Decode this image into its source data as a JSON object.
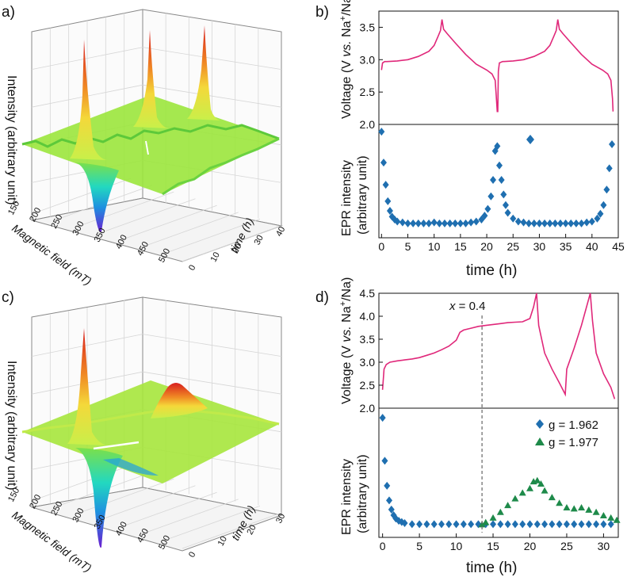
{
  "panels": {
    "a": "a)",
    "b": "b)",
    "c": "c)",
    "d": "d)"
  },
  "surface_axes": {
    "z_label": "Intensity (arbitrary unit)",
    "x_label": "Magnetic field (mT)",
    "y_label": "time (h)"
  },
  "labels": {
    "voltage_ylabel": "Voltage (V vs. Na+/Na)",
    "epr_ylabel_1": "EPR intensity",
    "epr_ylabel_2": "(arbitrary unit)",
    "time_xlabel": "time (h)",
    "annotation_d": "x = 0.4"
  },
  "colors": {
    "voltage": "#e0287a",
    "epr_1962": "#1f6fb0",
    "epr_1977": "#1e8a4a"
  },
  "chart_data": [
    {
      "id": "a",
      "type": "surface3d",
      "field_ticks": [
        "150",
        "200",
        "250",
        "300",
        "350",
        "400",
        "450",
        "500"
      ],
      "time_ticks": [
        "0",
        "10",
        "20",
        "30",
        "40"
      ],
      "time_range": [
        0,
        44
      ],
      "field_range": [
        150,
        500
      ]
    },
    {
      "id": "b-voltage",
      "type": "line",
      "ylim": [
        2.0,
        3.75
      ],
      "xlim": [
        -0.5,
        45
      ],
      "yticks": [
        "2.0",
        "2.5",
        "3.0",
        "3.5"
      ],
      "series": [
        {
          "x": [
            0,
            0.2,
            0.6,
            1,
            3,
            5,
            7,
            9,
            10,
            10.8,
            11.2,
            11.5,
            11.8,
            12.5,
            14,
            16,
            18,
            20,
            21,
            21.6,
            21.8,
            22.0,
            22.1,
            22.2,
            22.4,
            23,
            25,
            27,
            29,
            31,
            32,
            32.8,
            33.2,
            33.5,
            33.8,
            34.5,
            36,
            38,
            40,
            42,
            43,
            43.6,
            43.9,
            44
          ],
          "y": [
            2.84,
            2.95,
            2.97,
            2.97,
            2.98,
            3.0,
            3.05,
            3.13,
            3.22,
            3.37,
            3.45,
            3.62,
            3.47,
            3.4,
            3.26,
            3.08,
            2.93,
            2.84,
            2.78,
            2.68,
            2.45,
            2.2,
            2.2,
            2.82,
            2.95,
            2.97,
            2.98,
            3.0,
            3.05,
            3.13,
            3.22,
            3.37,
            3.45,
            3.62,
            3.47,
            3.4,
            3.26,
            3.08,
            2.93,
            2.84,
            2.78,
            2.68,
            2.4,
            2.2
          ]
        }
      ]
    },
    {
      "id": "b-epr",
      "type": "scatter",
      "xlim": [
        -0.5,
        45
      ],
      "xticks": [
        "0",
        "5",
        "10",
        "15",
        "20",
        "25",
        "30",
        "35",
        "40",
        "45"
      ],
      "legend": [
        "g = 1.962"
      ],
      "series": [
        {
          "name": "g = 1.962",
          "x": [
            0,
            0.4,
            0.8,
            1.2,
            1.6,
            2.0,
            2.5,
            3,
            4,
            5,
            6,
            7,
            8,
            9,
            10,
            11,
            12,
            13,
            14,
            15,
            16,
            17,
            18,
            19,
            19.6,
            20.2,
            20.8,
            21.2,
            21.6,
            22.0,
            22.4,
            22.8,
            23.2,
            23.6,
            24,
            25,
            26,
            27,
            28,
            29,
            30,
            31,
            32,
            33,
            34,
            35,
            36,
            37,
            38,
            39,
            40,
            41,
            41.6,
            42.2,
            42.8,
            43.3,
            43.8
          ],
          "y": [
            1.0,
            0.68,
            0.45,
            0.28,
            0.18,
            0.12,
            0.09,
            0.07,
            0.06,
            0.05,
            0.05,
            0.05,
            0.05,
            0.05,
            0.06,
            0.05,
            0.05,
            0.05,
            0.05,
            0.05,
            0.05,
            0.06,
            0.07,
            0.09,
            0.13,
            0.2,
            0.33,
            0.5,
            0.8,
            0.85,
            0.65,
            0.5,
            0.35,
            0.24,
            0.16,
            0.1,
            0.07,
            0.06,
            0.05,
            0.05,
            0.05,
            0.05,
            0.05,
            0.05,
            0.05,
            0.05,
            0.05,
            0.05,
            0.05,
            0.06,
            0.07,
            0.1,
            0.15,
            0.24,
            0.4,
            0.62,
            0.87
          ]
        }
      ]
    },
    {
      "id": "c",
      "type": "surface3d",
      "field_ticks": [
        "150",
        "200",
        "250",
        "300",
        "350",
        "400",
        "450",
        "500"
      ],
      "time_ticks": [
        "0",
        "10",
        "20",
        "30"
      ],
      "time_range": [
        0,
        32
      ],
      "field_range": [
        150,
        500
      ]
    },
    {
      "id": "d-voltage",
      "type": "line",
      "ylim": [
        2.0,
        4.5
      ],
      "xlim": [
        -0.5,
        32
      ],
      "yticks": [
        "2.0",
        "2.5",
        "3.0",
        "3.5",
        "4.0",
        "4.5"
      ],
      "series": [
        {
          "x": [
            0,
            0.2,
            0.5,
            1,
            2,
            3,
            4,
            5,
            6,
            7,
            8,
            9,
            10,
            10.5,
            11,
            12,
            13,
            14,
            15,
            16,
            17,
            18,
            19,
            20,
            20.5,
            20.9,
            21.2,
            22,
            23,
            24,
            24.8,
            25,
            26,
            27,
            28.2,
            28.5,
            29,
            30,
            31,
            31.5
          ],
          "y": [
            2.4,
            2.85,
            2.95,
            3.0,
            3.03,
            3.05,
            3.07,
            3.1,
            3.15,
            3.2,
            3.27,
            3.35,
            3.48,
            3.65,
            3.7,
            3.74,
            3.78,
            3.8,
            3.82,
            3.84,
            3.86,
            3.87,
            3.88,
            3.95,
            4.2,
            4.5,
            3.8,
            3.2,
            2.85,
            2.55,
            2.3,
            2.85,
            3.3,
            3.8,
            4.5,
            3.9,
            3.2,
            2.75,
            2.45,
            2.2
          ]
        }
      ]
    },
    {
      "id": "d-epr",
      "type": "scatter",
      "xlim": [
        -0.5,
        32
      ],
      "xticks": [
        "0",
        "5",
        "10",
        "15",
        "20",
        "25",
        "30"
      ],
      "annotation_x": 13.5,
      "legend": [
        "g = 1.962",
        "g = 1.977"
      ],
      "series": [
        {
          "name": "g = 1.962",
          "x": [
            0,
            0.3,
            0.6,
            0.9,
            1.2,
            1.5,
            1.8,
            2.2,
            2.6,
            3,
            4,
            5,
            6,
            7,
            8,
            9,
            10,
            11,
            12,
            13,
            14,
            15,
            16,
            17,
            18,
            19,
            20,
            21,
            22,
            23,
            24,
            25,
            26,
            27,
            28,
            29,
            30,
            31
          ],
          "y": [
            1.0,
            0.62,
            0.4,
            0.27,
            0.19,
            0.14,
            0.11,
            0.09,
            0.08,
            0.07,
            0.06,
            0.06,
            0.06,
            0.06,
            0.06,
            0.06,
            0.06,
            0.06,
            0.06,
            0.06,
            0.06,
            0.06,
            0.06,
            0.06,
            0.06,
            0.06,
            0.06,
            0.06,
            0.06,
            0.06,
            0.06,
            0.06,
            0.06,
            0.06,
            0.06,
            0.06,
            0.06,
            0.06
          ]
        },
        {
          "name": "g = 1.977",
          "x": [
            13.5,
            14,
            15,
            16,
            17,
            18,
            19,
            20,
            20.5,
            21,
            21.5,
            22,
            23,
            24,
            25,
            26,
            27,
            28,
            29,
            30,
            31,
            31.8
          ],
          "y": [
            0.06,
            0.08,
            0.12,
            0.17,
            0.23,
            0.29,
            0.34,
            0.38,
            0.44,
            0.45,
            0.42,
            0.36,
            0.3,
            0.25,
            0.21,
            0.2,
            0.21,
            0.19,
            0.17,
            0.14,
            0.12,
            0.1
          ]
        }
      ]
    }
  ]
}
